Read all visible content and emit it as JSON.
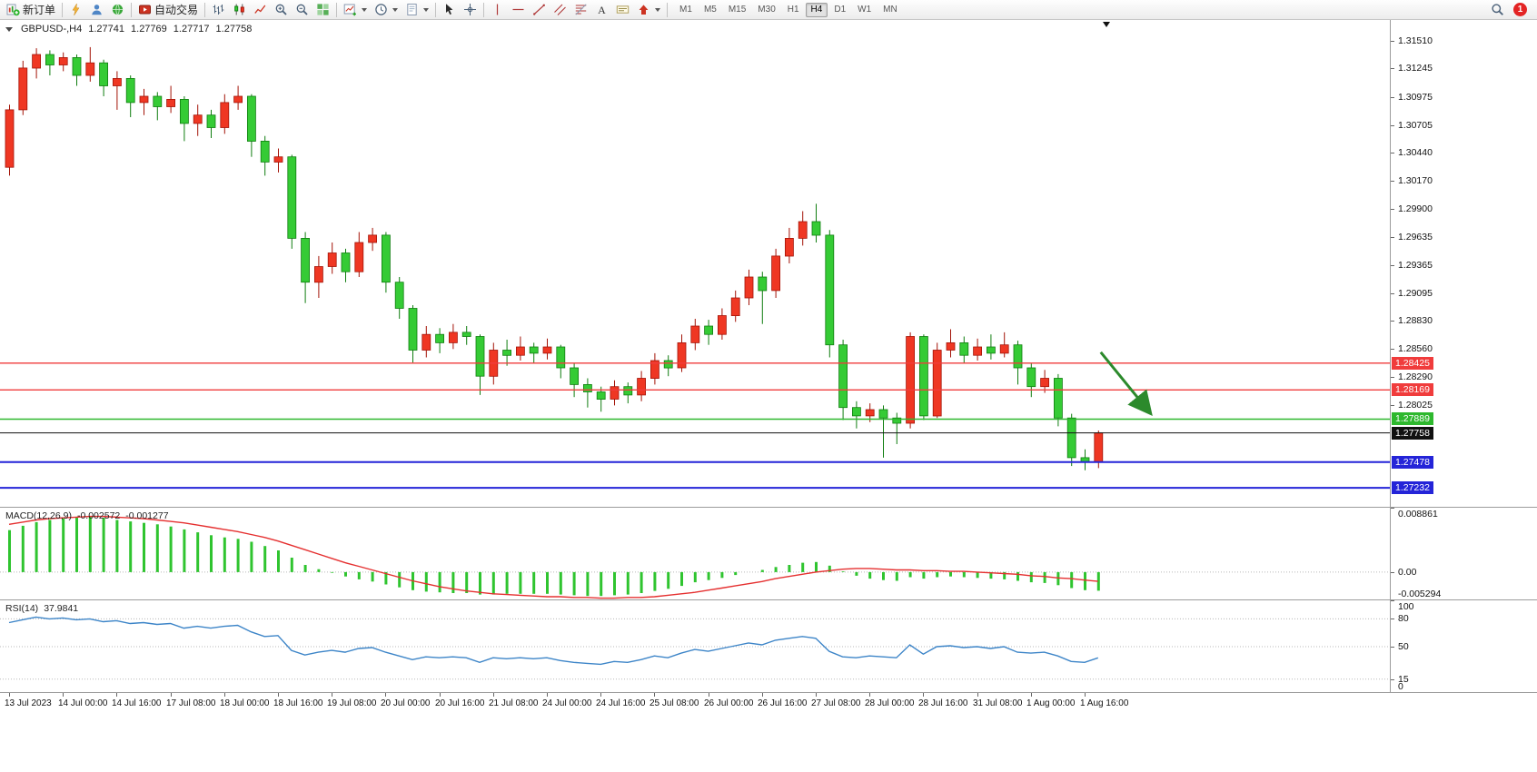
{
  "toolbar": {
    "new_order_label": "新订单",
    "auto_trading_label": "自动交易",
    "timeframes": [
      "M1",
      "M5",
      "M15",
      "M30",
      "H1",
      "H4",
      "D1",
      "W1",
      "MN"
    ],
    "active_timeframe": "H4",
    "notification_badge": "1"
  },
  "chart_header": {
    "symbol": "GBPUSD-,H4",
    "open": "1.27741",
    "high": "1.27769",
    "low": "1.27717",
    "close": "1.27758"
  },
  "colors": {
    "up": "#ef3723",
    "up_border": "#a31307",
    "down": "#35cb35",
    "down_border": "#0f7d0f",
    "macd_hist": "#2fc42f",
    "macd_signal": "#e53030",
    "rsi_line": "#3d85c8"
  },
  "chart_data": [
    {
      "type": "candlestick",
      "title": "GBPUSD- H4",
      "price_range": [
        1.2705,
        1.3171
      ],
      "axis_ticks": [
        "1.31510",
        "1.31245",
        "1.30975",
        "1.30705",
        "1.30440",
        "1.30170",
        "1.29900",
        "1.29635",
        "1.29365",
        "1.29095",
        "1.28830",
        "1.28560",
        "1.28290",
        "1.28025"
      ],
      "levels": [
        {
          "label": "1.28425",
          "price": 1.28425,
          "color": "#f03c3c",
          "width": 1.4
        },
        {
          "label": "1.28169",
          "price": 1.28169,
          "color": "#f03c3c",
          "width": 1.4
        },
        {
          "label": "1.27889",
          "price": 1.27889,
          "color": "#2eb82e",
          "width": 1.4
        },
        {
          "label": "1.27758",
          "price": 1.27758,
          "color": "#111111",
          "width": 1
        },
        {
          "label": "1.27478",
          "price": 1.27478,
          "color": "#2424d8",
          "width": 2
        },
        {
          "label": "1.27232",
          "price": 1.27232,
          "color": "#2424d8",
          "width": 2
        }
      ],
      "arrow": {
        "from_bar": 81.2,
        "from_price": 1.2853,
        "to_bar": 84.8,
        "to_price": 1.2796,
        "color": "#2c8a2c"
      },
      "x_labels": [
        {
          "i": 0,
          "t": "13 Jul 2023"
        },
        {
          "i": 4,
          "t": "14 Jul 00:00"
        },
        {
          "i": 8,
          "t": "14 Jul 16:00"
        },
        {
          "i": 12,
          "t": "17 Jul 08:00"
        },
        {
          "i": 16,
          "t": "18 Jul 00:00"
        },
        {
          "i": 20,
          "t": "18 Jul 16:00"
        },
        {
          "i": 24,
          "t": "19 Jul 08:00"
        },
        {
          "i": 28,
          "t": "20 Jul 00:00"
        },
        {
          "i": 32,
          "t": "20 Jul 16:00"
        },
        {
          "i": 36,
          "t": "21 Jul 08:00"
        },
        {
          "i": 40,
          "t": "24 Jul 00:00"
        },
        {
          "i": 44,
          "t": "24 Jul 16:00"
        },
        {
          "i": 48,
          "t": "25 Jul 08:00"
        },
        {
          "i": 52,
          "t": "26 Jul 00:00"
        },
        {
          "i": 56,
          "t": "26 Jul 16:00"
        },
        {
          "i": 60,
          "t": "27 Jul 08:00"
        },
        {
          "i": 64,
          "t": "28 Jul 00:00"
        },
        {
          "i": 68,
          "t": "28 Jul 16:00"
        },
        {
          "i": 72,
          "t": "31 Jul 08:00"
        },
        {
          "i": 76,
          "t": "1 Aug 00:00"
        },
        {
          "i": 80,
          "t": "1 Aug 16:00"
        }
      ],
      "candles": [
        [
          1.303,
          1.309,
          1.3022,
          1.3085
        ],
        [
          1.3085,
          1.3132,
          1.308,
          1.3125
        ],
        [
          1.3125,
          1.3144,
          1.3115,
          1.3138
        ],
        [
          1.3138,
          1.3142,
          1.3118,
          1.3128
        ],
        [
          1.3128,
          1.314,
          1.3122,
          1.3135
        ],
        [
          1.3135,
          1.3138,
          1.3108,
          1.3118
        ],
        [
          1.3118,
          1.3145,
          1.3112,
          1.313
        ],
        [
          1.313,
          1.3133,
          1.3098,
          1.3108
        ],
        [
          1.3108,
          1.3122,
          1.3085,
          1.3115
        ],
        [
          1.3115,
          1.3118,
          1.3078,
          1.3092
        ],
        [
          1.3092,
          1.3105,
          1.308,
          1.3098
        ],
        [
          1.3098,
          1.3102,
          1.3075,
          1.3088
        ],
        [
          1.3088,
          1.3108,
          1.3082,
          1.3095
        ],
        [
          1.3095,
          1.3098,
          1.3055,
          1.3072
        ],
        [
          1.3072,
          1.309,
          1.306,
          1.308
        ],
        [
          1.308,
          1.3085,
          1.3058,
          1.3068
        ],
        [
          1.3068,
          1.31,
          1.3062,
          1.3092
        ],
        [
          1.3092,
          1.3108,
          1.3085,
          1.3098
        ],
        [
          1.3098,
          1.31,
          1.304,
          1.3055
        ],
        [
          1.3055,
          1.306,
          1.3022,
          1.3035
        ],
        [
          1.3035,
          1.3048,
          1.3025,
          1.304
        ],
        [
          1.304,
          1.3042,
          1.2952,
          1.2962
        ],
        [
          1.2962,
          1.2968,
          1.29,
          1.292
        ],
        [
          1.292,
          1.2945,
          1.2905,
          1.2935
        ],
        [
          1.2935,
          1.2958,
          1.2928,
          1.2948
        ],
        [
          1.2948,
          1.2952,
          1.292,
          1.293
        ],
        [
          1.293,
          1.2968,
          1.2925,
          1.2958
        ],
        [
          1.2958,
          1.2972,
          1.295,
          1.2965
        ],
        [
          1.2965,
          1.2968,
          1.291,
          1.292
        ],
        [
          1.292,
          1.2925,
          1.2885,
          1.2895
        ],
        [
          1.2895,
          1.2898,
          1.2843,
          1.2855
        ],
        [
          1.2855,
          1.2878,
          1.2848,
          1.287
        ],
        [
          1.287,
          1.2876,
          1.2852,
          1.2862
        ],
        [
          1.2862,
          1.288,
          1.2856,
          1.2872
        ],
        [
          1.2872,
          1.2878,
          1.286,
          1.2868
        ],
        [
          1.2868,
          1.287,
          1.2812,
          1.283
        ],
        [
          1.283,
          1.2862,
          1.2822,
          1.2855
        ],
        [
          1.2855,
          1.2865,
          1.284,
          1.285
        ],
        [
          1.285,
          1.2868,
          1.2845,
          1.2858
        ],
        [
          1.2858,
          1.2862,
          1.2842,
          1.2852
        ],
        [
          1.2852,
          1.2866,
          1.2846,
          1.2858
        ],
        [
          1.2858,
          1.286,
          1.2828,
          1.2838
        ],
        [
          1.2838,
          1.2842,
          1.281,
          1.2822
        ],
        [
          1.2822,
          1.2828,
          1.28,
          1.2815
        ],
        [
          1.2815,
          1.282,
          1.2796,
          1.2808
        ],
        [
          1.2808,
          1.2826,
          1.2802,
          1.282
        ],
        [
          1.282,
          1.2824,
          1.2804,
          1.2812
        ],
        [
          1.2812,
          1.2835,
          1.2806,
          1.2828
        ],
        [
          1.2828,
          1.2852,
          1.2822,
          1.2845
        ],
        [
          1.2845,
          1.285,
          1.283,
          1.2838
        ],
        [
          1.2838,
          1.287,
          1.2834,
          1.2862
        ],
        [
          1.2862,
          1.2885,
          1.2855,
          1.2878
        ],
        [
          1.2878,
          1.2884,
          1.286,
          1.287
        ],
        [
          1.287,
          1.2895,
          1.2865,
          1.2888
        ],
        [
          1.2888,
          1.2912,
          1.2882,
          1.2905
        ],
        [
          1.2905,
          1.2932,
          1.2898,
          1.2925
        ],
        [
          1.2925,
          1.293,
          1.288,
          1.2912
        ],
        [
          1.2912,
          1.2952,
          1.2905,
          1.2945
        ],
        [
          1.2945,
          1.2972,
          1.2938,
          1.2962
        ],
        [
          1.2962,
          1.2988,
          1.2955,
          1.2978
        ],
        [
          1.2978,
          1.2995,
          1.2958,
          1.2965
        ],
        [
          1.2965,
          1.297,
          1.2848,
          1.286
        ],
        [
          1.286,
          1.2865,
          1.2788,
          1.28
        ],
        [
          1.28,
          1.2806,
          1.278,
          1.2792
        ],
        [
          1.2792,
          1.2804,
          1.2786,
          1.2798
        ],
        [
          1.2798,
          1.2802,
          1.2752,
          1.279
        ],
        [
          1.279,
          1.2795,
          1.2765,
          1.2785
        ],
        [
          1.2785,
          1.2872,
          1.278,
          1.2868
        ],
        [
          1.2868,
          1.287,
          1.2788,
          1.2792
        ],
        [
          1.2792,
          1.2862,
          1.279,
          1.2855
        ],
        [
          1.2855,
          1.2875,
          1.2848,
          1.2862
        ],
        [
          1.2862,
          1.2868,
          1.2842,
          1.285
        ],
        [
          1.285,
          1.2866,
          1.2845,
          1.2858
        ],
        [
          1.2858,
          1.287,
          1.2846,
          1.2852
        ],
        [
          1.2852,
          1.2872,
          1.2848,
          1.286
        ],
        [
          1.286,
          1.2864,
          1.2822,
          1.2838
        ],
        [
          1.2838,
          1.2842,
          1.281,
          1.282
        ],
        [
          1.282,
          1.2836,
          1.2814,
          1.2828
        ],
        [
          1.2828,
          1.2832,
          1.2782,
          1.279
        ],
        [
          1.279,
          1.2794,
          1.2744,
          1.2752
        ],
        [
          1.2752,
          1.276,
          1.274,
          1.2748
        ],
        [
          1.2748,
          1.2778,
          1.2742,
          1.27758
        ]
      ]
    },
    {
      "type": "bar",
      "name": "MACD",
      "label": "MACD(12,26,9)",
      "value_main": "-0.002572",
      "value_signal": "-0.001277",
      "axis_ticks": [
        "0.008861",
        "0.00",
        "-0.005294"
      ],
      "ylim": [
        -0.0039,
        0.0089
      ],
      "histogram": [
        0.0058,
        0.0064,
        0.0069,
        0.0072,
        0.0074,
        0.0076,
        0.0077,
        0.0075,
        0.0072,
        0.007,
        0.0068,
        0.0066,
        0.0063,
        0.0059,
        0.0055,
        0.0051,
        0.0048,
        0.0046,
        0.0042,
        0.0036,
        0.003,
        0.002,
        0.001,
        0.0004,
        -0.0001,
        -0.0006,
        -0.001,
        -0.0013,
        -0.0017,
        -0.0021,
        -0.0025,
        -0.0027,
        -0.0028,
        -0.0029,
        -0.0029,
        -0.0031,
        -0.0031,
        -0.003,
        -0.003,
        -0.003,
        -0.003,
        -0.0031,
        -0.0032,
        -0.0033,
        -0.0033,
        -0.0032,
        -0.0031,
        -0.0029,
        -0.0026,
        -0.0023,
        -0.0019,
        -0.0014,
        -0.0011,
        -0.0008,
        -0.0004,
        0.0,
        0.0003,
        0.0007,
        0.001,
        0.0013,
        0.0014,
        0.0009,
        0.0001,
        -0.0005,
        -0.0009,
        -0.0011,
        -0.0012,
        -0.0007,
        -0.0009,
        -0.0007,
        -0.0006,
        -0.0007,
        -0.0008,
        -0.0009,
        -0.001,
        -0.0012,
        -0.0014,
        -0.0015,
        -0.0018,
        -0.0022,
        -0.0025,
        -0.002572
      ],
      "signal": [
        0.0066,
        0.0069,
        0.0072,
        0.0074,
        0.0075,
        0.0076,
        0.0077,
        0.0077,
        0.0076,
        0.0075,
        0.0074,
        0.0072,
        0.007,
        0.0068,
        0.0065,
        0.0062,
        0.0059,
        0.0056,
        0.0052,
        0.0048,
        0.0043,
        0.0037,
        0.0031,
        0.0025,
        0.0019,
        0.0013,
        0.0008,
        0.0003,
        -0.0002,
        -0.0007,
        -0.0012,
        -0.0016,
        -0.002,
        -0.0023,
        -0.0026,
        -0.0028,
        -0.003,
        -0.0031,
        -0.0032,
        -0.0033,
        -0.0034,
        -0.0034,
        -0.0035,
        -0.0035,
        -0.0036,
        -0.0036,
        -0.0035,
        -0.0035,
        -0.0034,
        -0.0032,
        -0.003,
        -0.0028,
        -0.0025,
        -0.0022,
        -0.0019,
        -0.0016,
        -0.0013,
        -0.0009,
        -0.0006,
        -0.0003,
        0.0,
        0.0002,
        0.0004,
        0.0005,
        0.0005,
        0.0004,
        0.0003,
        0.0003,
        0.0002,
        0.0002,
        0.0001,
        0.0001,
        0.0,
        -0.0001,
        -0.0002,
        -0.0003,
        -0.0005,
        -0.0006,
        -0.0008,
        -0.0009,
        -0.0011,
        -0.001277
      ]
    },
    {
      "type": "line",
      "name": "RSI",
      "label": "RSI(14)",
      "value": "37.9841",
      "axis_ticks": [
        "100",
        "80",
        "50",
        "15",
        "0"
      ],
      "ylim": [
        0,
        100
      ],
      "level_lines": [
        80,
        50,
        15
      ],
      "values": [
        76,
        79,
        82,
        80,
        81,
        79,
        80,
        77,
        78,
        75,
        76,
        74,
        75,
        70,
        72,
        70,
        72,
        73,
        66,
        61,
        62,
        46,
        41,
        44,
        46,
        44,
        48,
        49,
        44,
        40,
        36,
        39,
        38,
        39,
        38,
        33,
        38,
        37,
        38,
        37,
        38,
        35,
        33,
        32,
        31,
        34,
        33,
        36,
        40,
        38,
        43,
        47,
        45,
        48,
        51,
        54,
        52,
        57,
        59,
        61,
        59,
        45,
        39,
        38,
        40,
        39,
        38,
        52,
        42,
        50,
        51,
        49,
        50,
        48,
        50,
        44,
        43,
        44,
        40,
        34,
        33,
        37.98
      ]
    }
  ]
}
